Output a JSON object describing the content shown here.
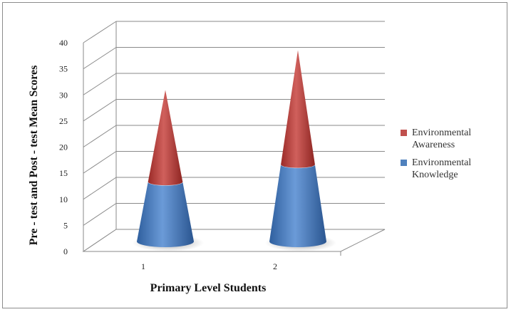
{
  "chart_data": {
    "type": "bar",
    "subtype": "3d-stacked-cone",
    "title": "",
    "xlabel": "Primary Level Students",
    "ylabel": "Pre - test and Post - test Mean Scores",
    "categories": [
      "1",
      "2"
    ],
    "series": [
      {
        "name": "Environmental Knowledge",
        "values": [
          12,
          15.5
        ],
        "color": "#4f81bd"
      },
      {
        "name": "Environmental Awareness",
        "values": [
          18.5,
          23
        ],
        "color": "#c0504d"
      }
    ],
    "ylim": [
      0,
      40
    ],
    "yticks": [
      0,
      5,
      10,
      15,
      20,
      25,
      30,
      35,
      40
    ],
    "grid": true,
    "legend": {
      "position": "right",
      "entries": [
        {
          "series": 1,
          "line1": "Environmental",
          "line2": "Awareness"
        },
        {
          "series": 0,
          "line1": "Environmental",
          "line2": "Knowledge"
        }
      ]
    }
  }
}
